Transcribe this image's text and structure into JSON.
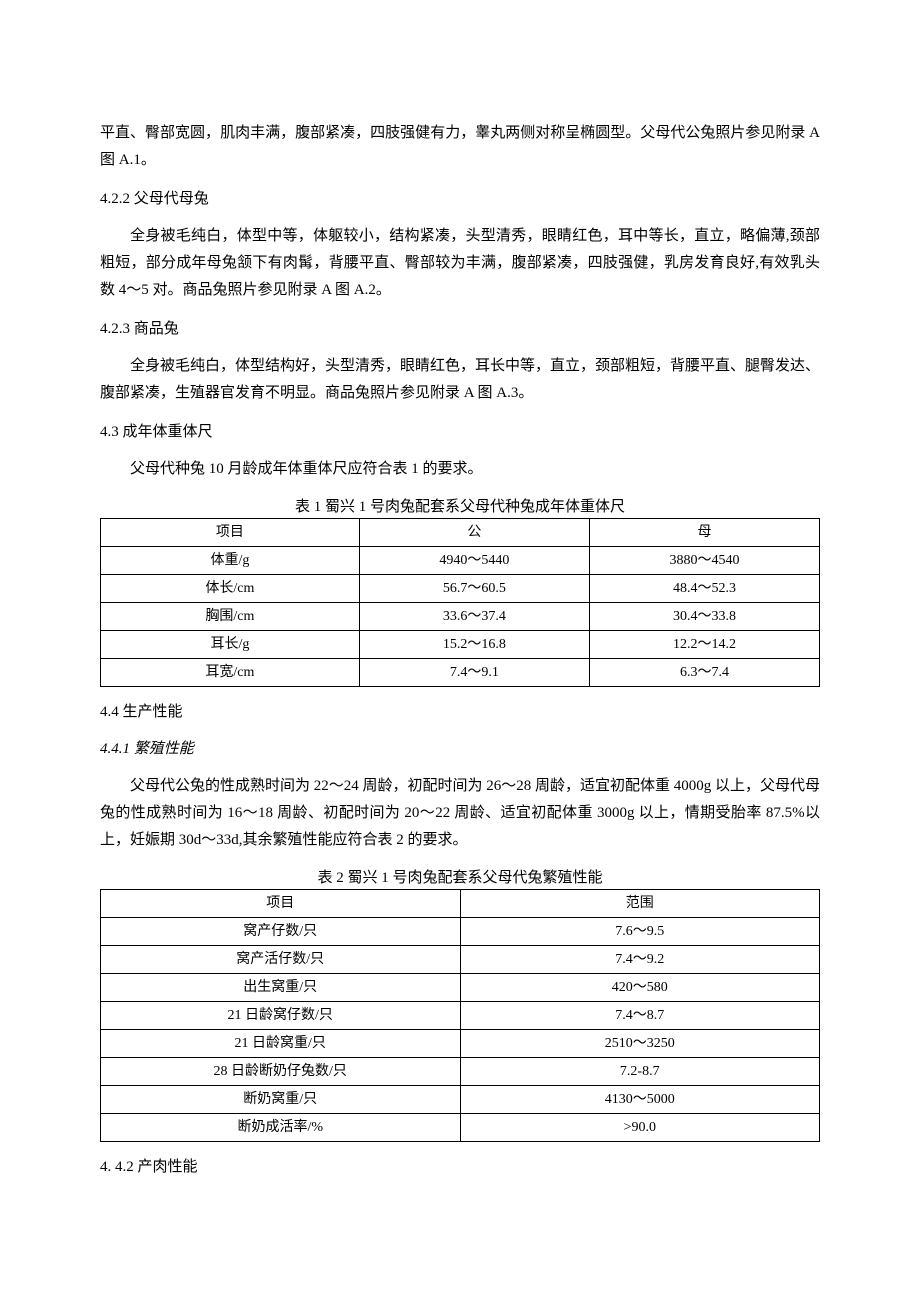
{
  "p_intro": "平直、臀部宽圆，肌肉丰满，腹部紧凑，四肢强健有力，睾丸两侧对称呈椭圆型。父母代公兔照片参见附录 A 图 A.1。",
  "h_422": "4.2.2 父母代母兔",
  "p_422": "全身被毛纯白，体型中等，体躯较小，结构紧凑，头型清秀，眼睛红色，耳中等长，直立，略偏薄,颈部粗短，部分成年母兔颔下有肉髯，背腰平直、臀部较为丰满，腹部紧凑，四肢强健，乳房发育良好,有效乳头数 4～5 对。商品兔照片参见附录 A 图 A.2。",
  "h_423": "4.2.3 商品兔",
  "p_423": "全身被毛纯白，体型结构好，头型清秀，眼睛红色，耳长中等，直立，颈部粗短，背腰平直、腿臀发达、腹部紧凑，生殖器官发育不明显。商品兔照片参见附录 A 图 A.3。",
  "h_43": "4.3 成年体重体尺",
  "p_43": "父母代种兔 10 月龄成年体重体尺应符合表 1 的要求。",
  "table1": {
    "caption": "表 1 蜀兴 1 号肉兔配套系父母代种兔成年体重体尺",
    "head": [
      "项目",
      "公",
      "母"
    ],
    "rows": [
      [
        "体重/g",
        "4940～5440",
        "3880～4540"
      ],
      [
        "体长/cm",
        "56.7～60.5",
        "48.4～52.3"
      ],
      [
        "胸围/cm",
        "33.6～37.4",
        "30.4～33.8"
      ],
      [
        "耳长/g",
        "15.2～16.8",
        "12.2～14.2"
      ],
      [
        "耳宽/cm",
        "7.4～9.1",
        "6.3～7.4"
      ]
    ]
  },
  "h_44": "4.4 生产性能",
  "h_441": "4.4.1 繁殖性能",
  "p_441": "父母代公兔的性成熟时间为 22～24 周龄，初配时间为 26～28 周龄，适宜初配体重 4000g 以上，父母代母兔的性成熟时间为 16～18 周龄、初配时间为 20～22 周龄、适宜初配体重 3000g 以上，情期受胎率 87.5%以上，妊娠期 30d～33d,其余繁殖性能应符合表 2 的要求。",
  "table2": {
    "caption": "表 2 蜀兴 1 号肉兔配套系父母代兔繁殖性能",
    "head": [
      "项目",
      "范围"
    ],
    "rows": [
      [
        "窝产仔数/只",
        "7.6～9.5"
      ],
      [
        "窝产活仔数/只",
        "7.4～9.2"
      ],
      [
        "出生窝重/只",
        "420～580"
      ],
      [
        "21 日龄窝仔数/只",
        "7.4～8.7"
      ],
      [
        "21 日龄窝重/只",
        "2510～3250"
      ],
      [
        "28 日龄断奶仔兔数/只",
        "7.2-8.7"
      ],
      [
        "断奶窝重/只",
        "4130～5000"
      ],
      [
        "断奶成活率/%",
        ">90.0"
      ]
    ]
  },
  "h_442": "4.  4.2 产肉性能"
}
